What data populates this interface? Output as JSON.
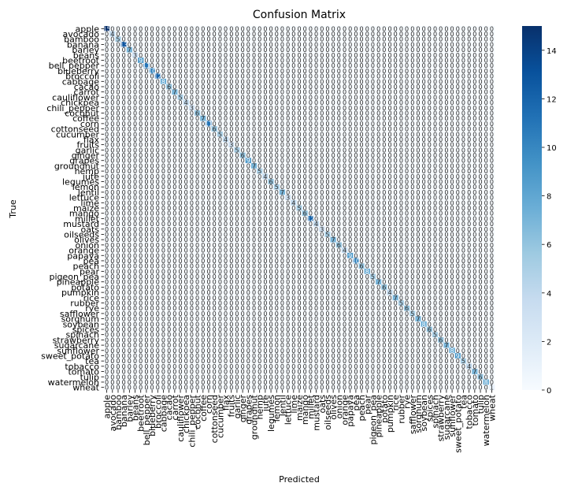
{
  "chart_data": {
    "type": "heatmap",
    "title": "Confusion Matrix",
    "xlabel": "Predicted",
    "ylabel": "True",
    "labels": [
      "apple",
      "avocado",
      "bamboo",
      "banana",
      "barley",
      "beans",
      "beetroot",
      "bell_pepper",
      "blueberry",
      "broccoli",
      "cabbage",
      "cacao",
      "carrot",
      "cauliflower",
      "chickpea",
      "chili_pepper",
      "coconut",
      "coffee",
      "corn",
      "cottonseed",
      "cucumber",
      "flax",
      "fruits",
      "garlic",
      "ginger",
      "grapes",
      "groundnut",
      "hemp",
      "jute",
      "legumes",
      "lemon",
      "lentil",
      "lettuce",
      "lime",
      "maize",
      "mango",
      "millet",
      "mustard",
      "oats",
      "oilseeds",
      "olives",
      "onion",
      "orange",
      "papaya",
      "pea",
      "peach",
      "pear",
      "pigeon_pea",
      "pineapple",
      "potato",
      "pumpkin",
      "rice",
      "rubber",
      "rye",
      "safflower",
      "sorghum",
      "soybean",
      "spices",
      "spinach",
      "strawberry",
      "sugarcane",
      "sunflower",
      "sweet_potato",
      "tea",
      "tobacco",
      "tomato",
      "tulip",
      "watermelon",
      "wheat"
    ],
    "diagonal": [
      15,
      4,
      5,
      13,
      7,
      3,
      9,
      11,
      10,
      12,
      8,
      6,
      7,
      5,
      4,
      3,
      6,
      7,
      11,
      6,
      5,
      4,
      3,
      5,
      6,
      9,
      7,
      5,
      4,
      6,
      5,
      7,
      3,
      4,
      5,
      6,
      12,
      4,
      3,
      5,
      7,
      6,
      4,
      9,
      10,
      6,
      8,
      5,
      7,
      6,
      4,
      7,
      5,
      6,
      5,
      7,
      8,
      6,
      5,
      6,
      7,
      8,
      9,
      5,
      4,
      7,
      6,
      8,
      1
    ],
    "offdiag_value": 0,
    "vmin": 0,
    "vmax": 15,
    "colorbar_ticks": [
      0,
      2,
      4,
      6,
      8,
      10,
      12,
      14
    ],
    "colormap": "Blues",
    "annotated": true
  }
}
